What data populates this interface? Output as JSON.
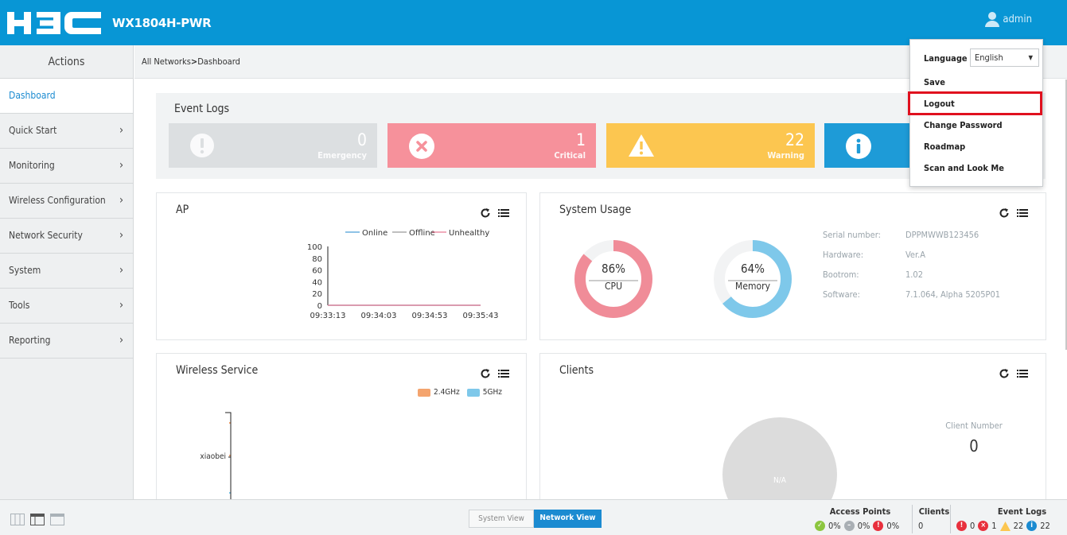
{
  "header": {
    "logo": "H3C",
    "device": "WX1804H-PWR",
    "user": "admin"
  },
  "sidebar": {
    "title": "Actions",
    "items": [
      {
        "label": "Dashboard",
        "active": true,
        "chevron": false
      },
      {
        "label": "Quick Start",
        "chevron": true
      },
      {
        "label": "Monitoring",
        "chevron": true
      },
      {
        "label": "Wireless Configuration",
        "chevron": true
      },
      {
        "label": "Network Security",
        "chevron": true
      },
      {
        "label": "System",
        "chevron": true
      },
      {
        "label": "Tools",
        "chevron": true
      },
      {
        "label": "Reporting",
        "chevron": true
      }
    ]
  },
  "breadcrumb": {
    "root": "All Networks",
    "separator": ">",
    "current": "Dashboard"
  },
  "event_logs": {
    "title": "Event Logs",
    "cards": [
      {
        "count": "0",
        "label": "Emergency",
        "color": "#dcdfe1"
      },
      {
        "count": "1",
        "label": "Critical",
        "color": "#f6919b"
      },
      {
        "count": "22",
        "label": "Warning",
        "color": "#fcc650"
      },
      {
        "count": "",
        "label": "",
        "color": "#1e9bd7"
      }
    ]
  },
  "ap": {
    "title": "AP",
    "legend": [
      "Online",
      "Offline",
      "Unhealthy"
    ],
    "legend_colors": [
      "#4a9fd6",
      "#999999",
      "#e87a94"
    ]
  },
  "chart_data": {
    "type": "line",
    "x": [
      "09:33:13",
      "09:34:03",
      "09:34:53",
      "09:35:43"
    ],
    "yticks": [
      0,
      20,
      40,
      60,
      80,
      100
    ],
    "ylim": [
      0,
      100
    ],
    "series": [
      {
        "name": "Online",
        "values": [
          0,
          0,
          0,
          0
        ]
      },
      {
        "name": "Offline",
        "values": [
          0,
          0,
          0,
          0
        ]
      },
      {
        "name": "Unhealthy",
        "values": [
          0,
          0,
          0,
          0
        ]
      }
    ]
  },
  "system_usage": {
    "title": "System Usage",
    "cpu": {
      "percent": "86%",
      "label": "CPU",
      "value": 86,
      "color": "#f08c98"
    },
    "memory": {
      "percent": "64%",
      "label": "Memory",
      "value": 64,
      "color": "#7ec8ea"
    },
    "info": [
      {
        "key": "Serial number:",
        "value": "DPPMWWB123456"
      },
      {
        "key": "Hardware:",
        "value": "Ver.A"
      },
      {
        "key": "Bootrom:",
        "value": "1.02"
      },
      {
        "key": "Software:",
        "value": "7.1.064, Alpha 5205P01"
      }
    ]
  },
  "wireless": {
    "title": "Wireless Service",
    "legend": [
      "2.4GHz",
      "5GHz"
    ],
    "legend_colors": [
      "#f4a46e",
      "#7ec8ea"
    ],
    "category": "xiaobei"
  },
  "clients": {
    "title": "Clients",
    "pie_label": "N/A",
    "number_label": "Client Number",
    "number": "0"
  },
  "dropdown": {
    "language_label": "Language",
    "language_value": "English",
    "items": [
      "Save",
      "Logout",
      "Change Password",
      "Roadmap",
      "Scan and Look Me"
    ]
  },
  "footer": {
    "system_view": "System View",
    "network_view": "Network View",
    "access_points": {
      "title": "Access Points",
      "values": [
        "0%",
        "0%",
        "0%"
      ]
    },
    "clients": {
      "title": "Clients",
      "value": "0"
    },
    "event_logs": {
      "title": "Event Logs",
      "values": [
        "0",
        "1",
        "22",
        "22"
      ]
    }
  }
}
